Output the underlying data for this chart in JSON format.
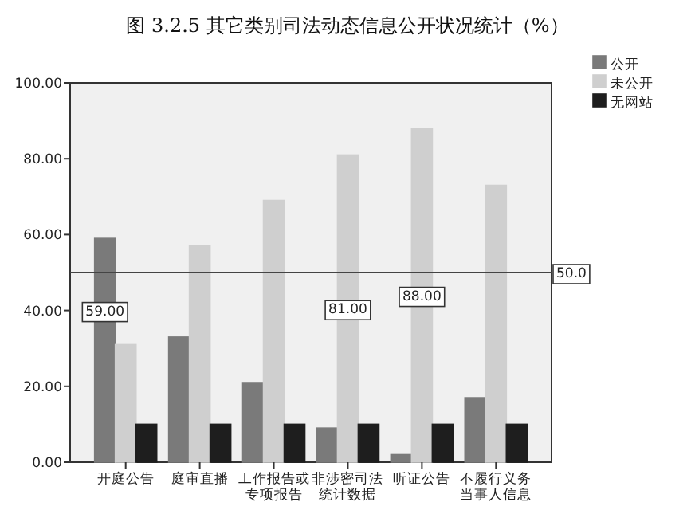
{
  "chart_data": {
    "type": "bar",
    "title": "图 3.2.5 其它类别司法动态信息公开状况统计（%）",
    "categories": [
      "开庭公告",
      "庭审直播",
      "工作报告或专项报告",
      "非涉密司法统计数据",
      "听证公告",
      "不履行义务当事人信息"
    ],
    "series": [
      {
        "name": "公开",
        "color": "#7a7a7a",
        "values": [
          59,
          33,
          21,
          9,
          2,
          17
        ],
        "value_labels": [
          "59.00",
          null,
          null,
          null,
          null,
          null
        ]
      },
      {
        "name": "未公开",
        "color": "#cfcfcf",
        "values": [
          31,
          57,
          69,
          81,
          88,
          73
        ],
        "value_labels": [
          null,
          null,
          null,
          "81.00",
          "88.00",
          null
        ]
      },
      {
        "name": "无网站",
        "color": "#1e1e1e",
        "values": [
          10,
          10,
          10,
          10,
          10,
          10
        ]
      }
    ],
    "ylim": [
      0,
      100
    ],
    "yticks": [
      {
        "value": 0,
        "label": "0.00"
      },
      {
        "value": 20,
        "label": "20.00"
      },
      {
        "value": 40,
        "label": "40.00"
      },
      {
        "value": 60,
        "label": "60.00"
      },
      {
        "value": 80,
        "label": "80.00"
      },
      {
        "value": 100,
        "label": "100.00"
      }
    ],
    "ref_lines": [
      {
        "axis": "y",
        "value": 50,
        "label": "50.0"
      }
    ],
    "legend": "top right",
    "grid": false
  }
}
